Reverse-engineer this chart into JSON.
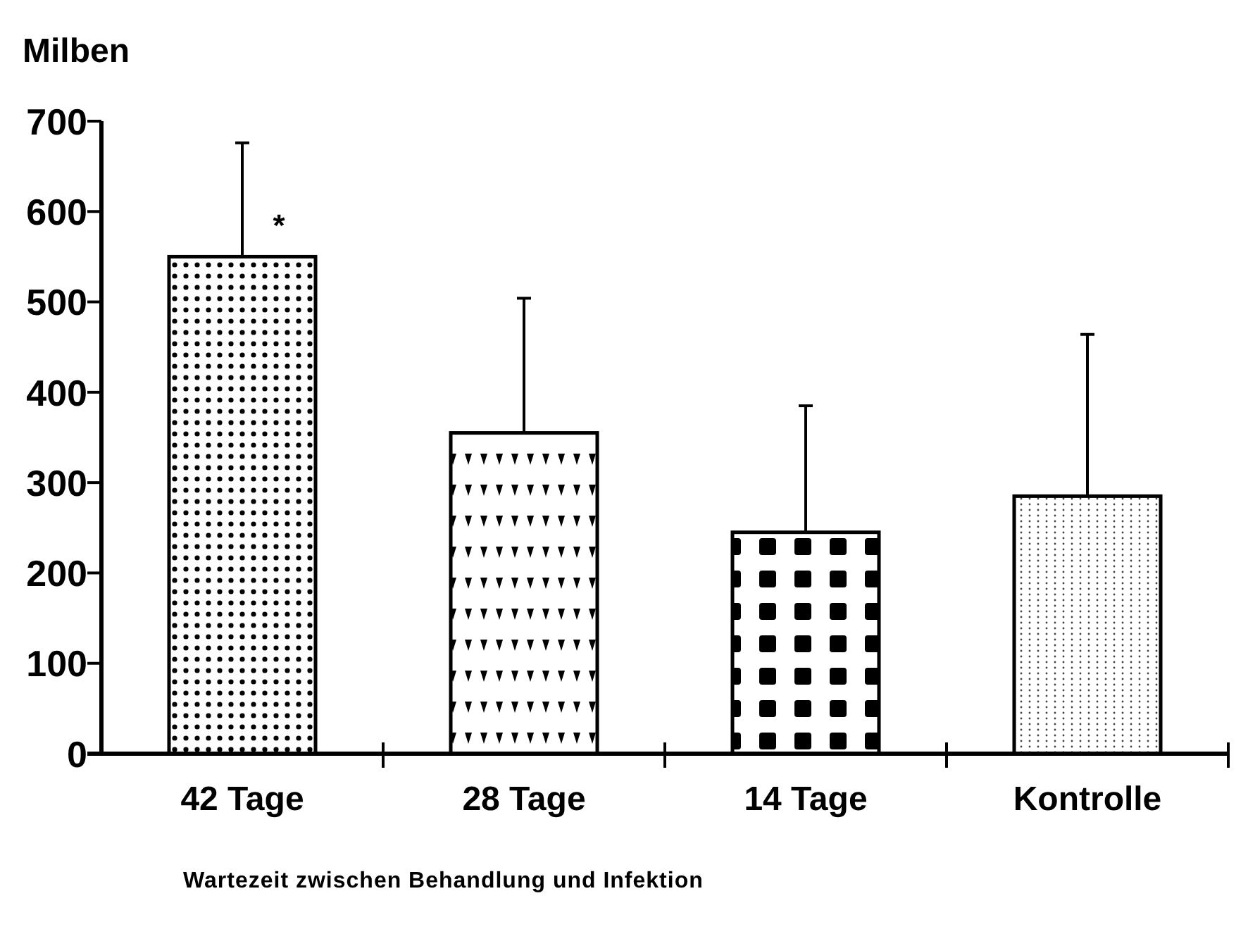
{
  "chart_data": {
    "type": "bar",
    "ylabel": "Milben",
    "xlabel": "Wartezeit zwischen Behandlung und Infektion",
    "categories": [
      "42 Tage",
      "28 Tage",
      "14 Tage",
      "Kontrolle"
    ],
    "values": [
      550,
      355,
      245,
      285
    ],
    "errors": [
      [
        550,
        676
      ],
      [
        355,
        504
      ],
      [
        245,
        385
      ],
      [
        285,
        464
      ]
    ],
    "colors": [
      "#000000",
      "#000000",
      "#000000",
      "#000000"
    ],
    "ylim": [
      0,
      700
    ],
    "yticks": [
      0,
      100,
      200,
      300,
      400,
      500,
      600,
      700
    ],
    "annotations": [
      {
        "text": "*",
        "x": "42 Tage",
        "y": 590
      }
    ],
    "grid": false
  }
}
